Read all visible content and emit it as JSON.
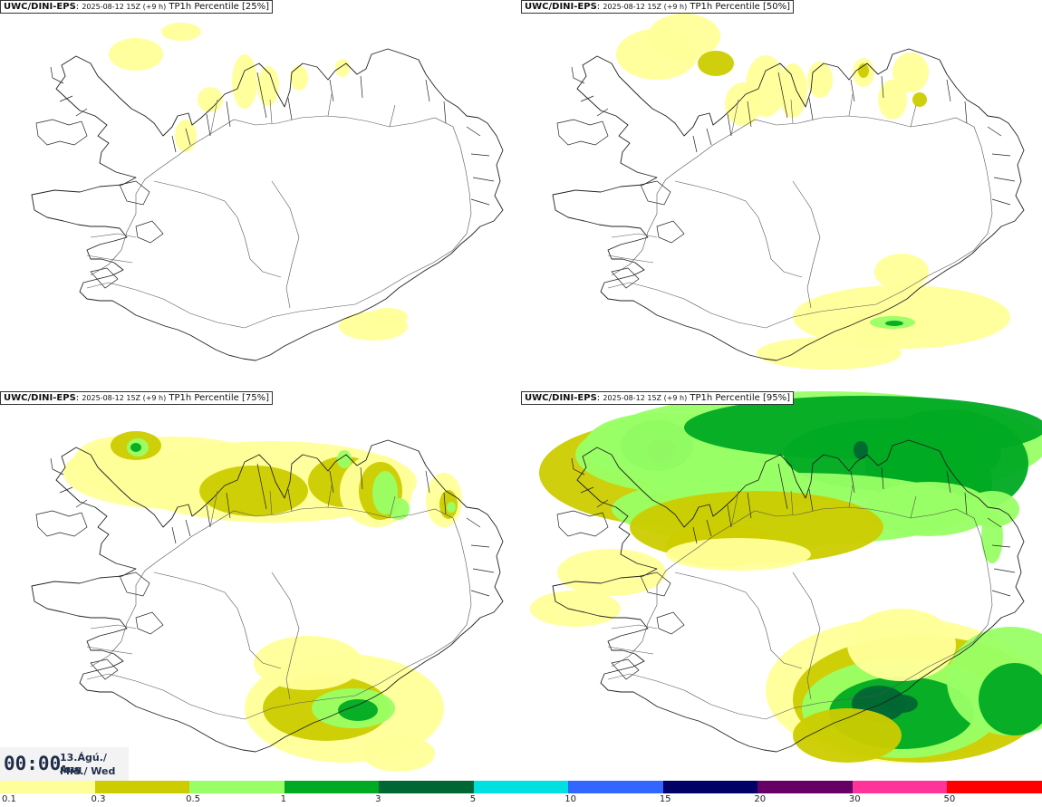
{
  "panels": [
    {
      "model": "UWC/DINI-EPS",
      "stamp": "2025-08-12 15Z (+9 h)",
      "product": "TP1h Percentile [25%]",
      "level": "p25"
    },
    {
      "model": "UWC/DINI-EPS",
      "stamp": "2025-08-12 15Z (+9 h)",
      "product": "TP1h Percentile [50%]",
      "level": "p50"
    },
    {
      "model": "UWC/DINI-EPS",
      "stamp": "2025-08-12 15Z (+9 h)",
      "product": "TP1h Percentile [75%]",
      "level": "p75"
    },
    {
      "model": "UWC/DINI-EPS",
      "stamp": "2025-08-12 15Z (+9 h)",
      "product": "TP1h Percentile [95%]",
      "level": "p95"
    }
  ],
  "valid": {
    "time": "00:00",
    "date_line": "13.Ágú./ Aug",
    "day_line": "Mið./ Wed"
  },
  "legend": {
    "ticks": [
      "0.1",
      "0.3",
      "0.5",
      "1",
      "3",
      "5",
      "10",
      "15",
      "20",
      "30",
      "50"
    ],
    "colors": [
      "#ffff99",
      "#cccc00",
      "#99ff66",
      "#00aa22",
      "#006633",
      "#00e0e0",
      "#3366ff",
      "#000066",
      "#660066",
      "#ff3399",
      "#ff0000"
    ]
  },
  "map": {
    "land": "#ffffff",
    "coast": "#222222",
    "road": "#555555"
  }
}
